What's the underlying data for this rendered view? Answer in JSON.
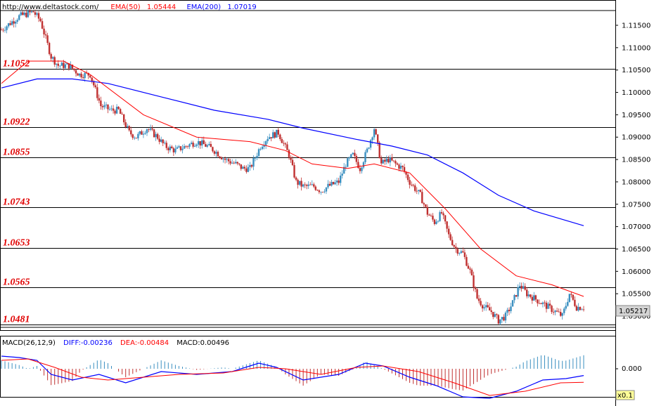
{
  "header": {
    "url": "http://www.deltastock.com/",
    "ema50_label": "EMA(50)",
    "ema50_value": "1.05444",
    "ema200_label": "EMA(200)",
    "ema200_value": "1.07019"
  },
  "macd_header": {
    "name": "MACD(26,12,9)",
    "diff": "DIFF:-0.00236",
    "dea": "DEA:-0.00484",
    "macd": "MACD:0.00496"
  },
  "colors": {
    "ema50": "#ff0000",
    "ema200": "#0000ff",
    "level": "#e00000",
    "up": "#3a8fc0",
    "down": "#c03030",
    "diff": "#0000ff",
    "dea": "#ff0000"
  },
  "chart_data": [
    {
      "type": "candlestick",
      "ylim": [
        1.0455,
        1.1195
      ],
      "yticks": [
        "1.11500",
        "1.11000",
        "1.10500",
        "1.10000",
        "1.09500",
        "1.09000",
        "1.08500",
        "1.08000",
        "1.07500",
        "1.07000",
        "1.06500",
        "1.06000",
        "1.05500",
        "1.05000"
      ],
      "current_price": "1.05217",
      "levels": [
        "1.1052",
        "1.0922",
        "1.0855",
        "1.0743",
        "1.0653",
        "1.0565",
        "1.0481"
      ],
      "close_path": [
        [
          0,
          1.114
        ],
        [
          10,
          1.117
        ],
        [
          18,
          1.118
        ],
        [
          22,
          1.116
        ],
        [
          28,
          1.108
        ],
        [
          32,
          1.106
        ],
        [
          38,
          1.106
        ],
        [
          44,
          1.104
        ],
        [
          50,
          1.104
        ],
        [
          56,
          1.097
        ],
        [
          62,
          1.096
        ],
        [
          66,
          1.096
        ],
        [
          72,
          1.091
        ],
        [
          76,
          1.09
        ],
        [
          82,
          1.092
        ],
        [
          88,
          1.09
        ],
        [
          92,
          1.088
        ],
        [
          98,
          1.087
        ],
        [
          104,
          1.088
        ],
        [
          110,
          1.089
        ],
        [
          116,
          1.088
        ],
        [
          120,
          1.087
        ],
        [
          126,
          1.085
        ],
        [
          132,
          1.084
        ],
        [
          136,
          1.083
        ],
        [
          140,
          1.083
        ],
        [
          146,
          1.088
        ],
        [
          150,
          1.09
        ],
        [
          156,
          1.091
        ],
        [
          162,
          1.086
        ],
        [
          166,
          1.08
        ],
        [
          170,
          1.079
        ],
        [
          176,
          1.079
        ],
        [
          180,
          1.078
        ],
        [
          184,
          1.079
        ],
        [
          190,
          1.08
        ],
        [
          194,
          1.084
        ],
        [
          198,
          1.086
        ],
        [
          202,
          1.083
        ],
        [
          206,
          1.087
        ],
        [
          210,
          1.092
        ],
        [
          214,
          1.084
        ],
        [
          218,
          1.085
        ],
        [
          222,
          1.084
        ],
        [
          226,
          1.083
        ],
        [
          230,
          1.08
        ],
        [
          236,
          1.077
        ],
        [
          240,
          1.073
        ],
        [
          244,
          1.071
        ],
        [
          248,
          1.073
        ],
        [
          252,
          1.068
        ],
        [
          256,
          1.065
        ],
        [
          260,
          1.064
        ],
        [
          264,
          1.06
        ],
        [
          268,
          1.054
        ],
        [
          272,
          1.052
        ],
        [
          276,
          1.051
        ],
        [
          280,
          1.049
        ],
        [
          284,
          1.05
        ],
        [
          288,
          1.053
        ],
        [
          292,
          1.057
        ],
        [
          296,
          1.055
        ],
        [
          300,
          1.054
        ],
        [
          304,
          1.053
        ],
        [
          308,
          1.052
        ],
        [
          312,
          1.051
        ],
        [
          316,
          1.05
        ],
        [
          320,
          1.055
        ],
        [
          324,
          1.052
        ],
        [
          328,
          1.052
        ]
      ],
      "ema50_path": [
        [
          0,
          1.102
        ],
        [
          15,
          1.107
        ],
        [
          35,
          1.107
        ],
        [
          50,
          1.104
        ],
        [
          80,
          1.095
        ],
        [
          110,
          1.09
        ],
        [
          140,
          1.089
        ],
        [
          160,
          1.087
        ],
        [
          175,
          1.084
        ],
        [
          195,
          1.083
        ],
        [
          210,
          1.084
        ],
        [
          230,
          1.082
        ],
        [
          250,
          1.074
        ],
        [
          270,
          1.065
        ],
        [
          290,
          1.059
        ],
        [
          310,
          1.057
        ],
        [
          328,
          1.0544
        ]
      ],
      "ema200_path": [
        [
          0,
          1.101
        ],
        [
          20,
          1.103
        ],
        [
          40,
          1.103
        ],
        [
          60,
          1.102
        ],
        [
          90,
          1.099
        ],
        [
          120,
          1.096
        ],
        [
          150,
          1.094
        ],
        [
          170,
          1.092
        ],
        [
          200,
          1.0895
        ],
        [
          220,
          1.088
        ],
        [
          240,
          1.086
        ],
        [
          260,
          1.082
        ],
        [
          280,
          1.077
        ],
        [
          300,
          1.0735
        ],
        [
          328,
          1.0702
        ]
      ]
    },
    {
      "type": "macd",
      "ylabel_tick": "0.000",
      "scale_badge": "x0.1",
      "diff_path": [
        [
          0,
          0.0045
        ],
        [
          10,
          0.004
        ],
        [
          20,
          0.003
        ],
        [
          28,
          -0.002
        ],
        [
          40,
          -0.004
        ],
        [
          55,
          -0.002
        ],
        [
          70,
          -0.005
        ],
        [
          90,
          -0.001
        ],
        [
          110,
          -0.002
        ],
        [
          130,
          -0.001
        ],
        [
          145,
          0.002
        ],
        [
          155,
          0.0005
        ],
        [
          170,
          -0.004
        ],
        [
          190,
          -0.002
        ],
        [
          205,
          0.002
        ],
        [
          215,
          0.001
        ],
        [
          230,
          -0.003
        ],
        [
          245,
          -0.006
        ],
        [
          260,
          -0.01
        ],
        [
          275,
          -0.0105
        ],
        [
          290,
          -0.008
        ],
        [
          305,
          -0.004
        ],
        [
          318,
          -0.0035
        ],
        [
          328,
          -0.0024
        ]
      ],
      "dea_path": [
        [
          0,
          0.003
        ],
        [
          15,
          0.0035
        ],
        [
          30,
          0.0005
        ],
        [
          45,
          -0.003
        ],
        [
          60,
          -0.004
        ],
        [
          80,
          -0.003
        ],
        [
          100,
          -0.002
        ],
        [
          125,
          -0.0015
        ],
        [
          145,
          0.0005
        ],
        [
          160,
          0.0
        ],
        [
          180,
          -0.002
        ],
        [
          200,
          0.0005
        ],
        [
          215,
          0.001
        ],
        [
          235,
          -0.001
        ],
        [
          255,
          -0.005
        ],
        [
          275,
          -0.0095
        ],
        [
          295,
          -0.008
        ],
        [
          315,
          -0.005
        ],
        [
          328,
          -0.0048
        ]
      ]
    }
  ]
}
